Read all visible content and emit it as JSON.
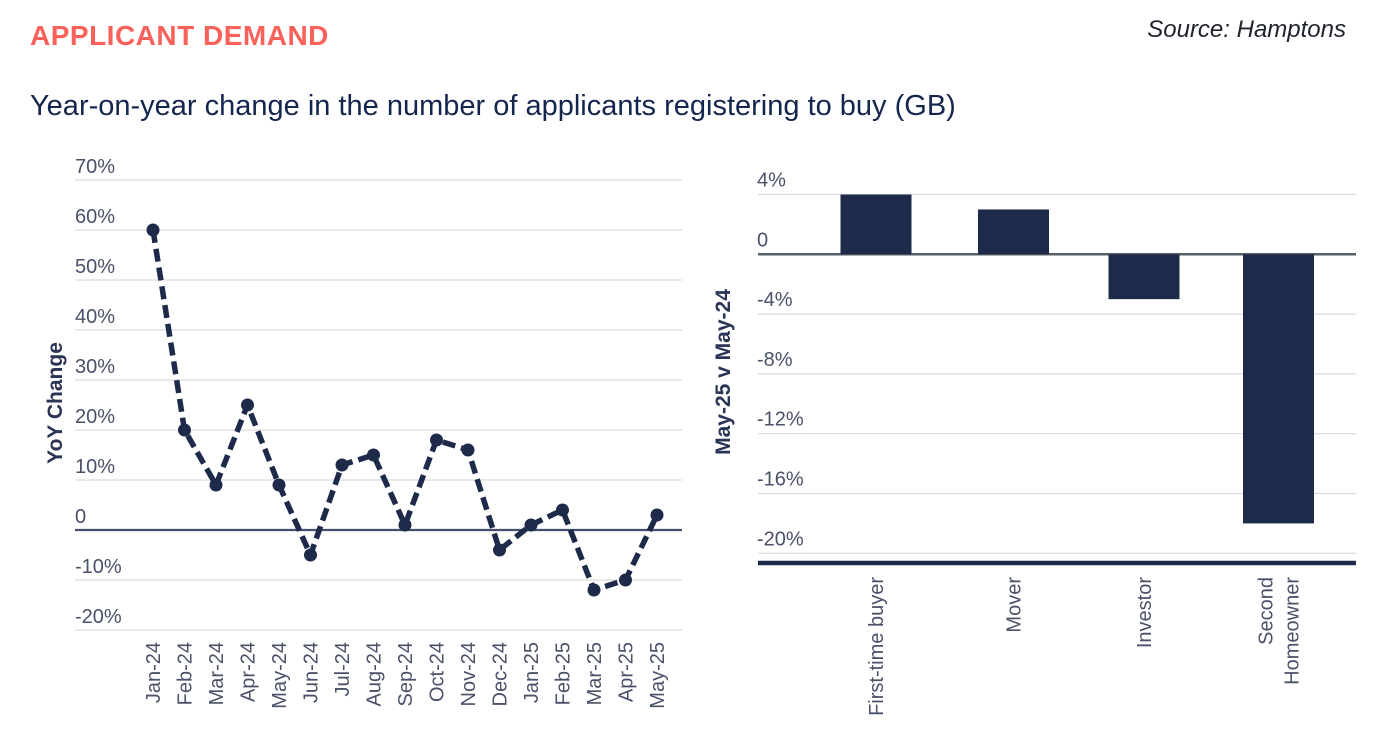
{
  "header": {
    "title": "APPLICANT DEMAND",
    "source": "Source: Hamptons",
    "subtitle": "Year-on-year change in the number of applicants registering to buy (GB)"
  },
  "colors": {
    "coral": "#f9625a",
    "navy": "#1e2a4a",
    "subtitle": "#14264e",
    "tick": "#4a5169",
    "grid": "#dcdcdc",
    "zero-line": "#454e6b",
    "zero-gray": "#5a6068",
    "source": "#20242e",
    "axis-title": "#2a3454"
  },
  "chart_data": [
    {
      "type": "line",
      "name": "yoy-change-line",
      "ylabel": "YoY Change",
      "x": [
        "Jan-24",
        "Feb-24",
        "Mar-24",
        "Apr-24",
        "May-24",
        "Jun-24",
        "Jul-24",
        "Aug-24",
        "Sep-24",
        "Oct-24",
        "Nov-24",
        "Dec-24",
        "Jan-25",
        "Feb-25",
        "Mar-25",
        "Apr-25",
        "May-25"
      ],
      "values": [
        60,
        20,
        9,
        25,
        9,
        -5,
        13,
        15,
        1,
        18,
        16,
        -4,
        1,
        4,
        -12,
        -10,
        3
      ],
      "yticks": [
        70,
        60,
        50,
        40,
        30,
        20,
        10,
        0,
        -10,
        -20
      ],
      "ylim": [
        -20,
        70
      ],
      "grid": true,
      "line_style": "dashed",
      "marker": "circle"
    },
    {
      "type": "bar",
      "name": "buyer-type-bars",
      "ylabel": "May-25 v May-24",
      "categories": [
        "First-time buyer",
        "Mover",
        "Investor",
        "Second\nHomeowner"
      ],
      "values": [
        4,
        3,
        -3,
        -18
      ],
      "yticks": [
        4,
        0,
        -4,
        -8,
        -12,
        -16,
        -20
      ],
      "ylim": [
        -20,
        4
      ],
      "grid": true
    }
  ]
}
